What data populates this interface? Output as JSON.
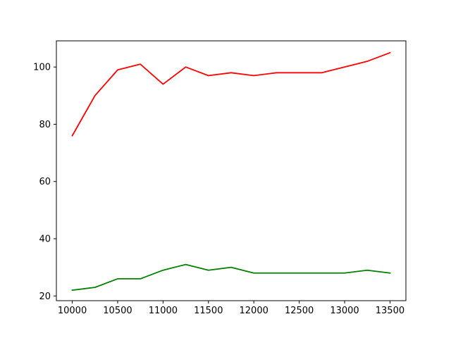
{
  "chart_data": {
    "type": "line",
    "title": "",
    "xlabel": "",
    "ylabel": "",
    "x": [
      10000,
      10250,
      10500,
      10750,
      11000,
      11250,
      11500,
      11750,
      12000,
      12250,
      12500,
      12750,
      13000,
      13250,
      13500
    ],
    "xlim": [
      9825,
      13675
    ],
    "ylim": [
      18.35,
      109.15
    ],
    "xticks": [
      10000,
      10500,
      11000,
      11500,
      12000,
      12500,
      13000,
      13500
    ],
    "yticks": [
      20,
      40,
      60,
      80,
      100
    ],
    "grid": false,
    "legend": "none",
    "series": [
      {
        "color": "#ff0000",
        "values": [
          76,
          90,
          99,
          101,
          94,
          100,
          97,
          98,
          97,
          98,
          98,
          98,
          100,
          102,
          105
        ]
      },
      {
        "color": "#008000",
        "values": [
          22,
          23,
          26,
          26,
          29,
          31,
          29,
          30,
          28,
          28,
          28,
          28,
          28,
          29,
          28
        ]
      }
    ]
  }
}
